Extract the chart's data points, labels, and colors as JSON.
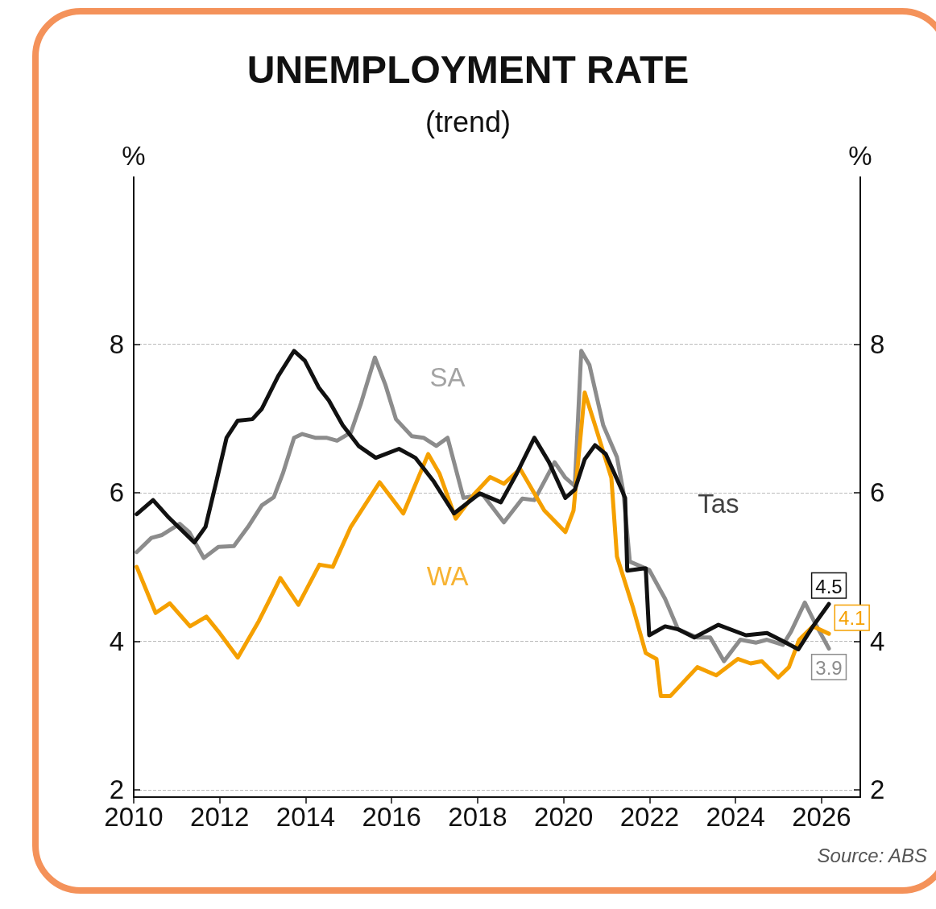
{
  "chart_data": {
    "type": "line",
    "title": "UNEMPLOYMENT RATE",
    "subtitle": "(trend)",
    "ylabel": "%",
    "y2label": "%",
    "xlim": [
      2010,
      2026.9
    ],
    "xticks": [
      2010,
      2012,
      2014,
      2016,
      2018,
      2020,
      2022,
      2024,
      2026
    ],
    "ylim": [
      1.9,
      10.25
    ],
    "yticks": [
      2,
      4,
      6,
      8
    ],
    "y2lim": [
      1.9,
      10.25
    ],
    "y2ticks": [
      2,
      4,
      6,
      8
    ],
    "grid": "y",
    "marker": "none",
    "line_style": "solid",
    "annotations": [
      "Source: ABS"
    ],
    "series": [
      {
        "name": "SA",
        "color": "#8c8c8c",
        "x": [
          2010.07,
          2010.41,
          2010.66,
          2011.07,
          2011.29,
          2011.63,
          2011.97,
          2012.33,
          2012.66,
          2012.98,
          2013.26,
          2013.47,
          2013.73,
          2013.92,
          2014.22,
          2014.48,
          2014.73,
          2015.05,
          2015.29,
          2015.61,
          2015.85,
          2016.1,
          2016.47,
          2016.74,
          2017.04,
          2017.3,
          2017.67,
          2018.11,
          2018.61,
          2019.04,
          2019.32,
          2019.79,
          2020.04,
          2020.26,
          2020.41,
          2020.6,
          2020.92,
          2021.24,
          2021.39,
          2021.54,
          2021.99,
          2022.36,
          2022.66,
          2023.11,
          2023.41,
          2023.73,
          2024.11,
          2024.48,
          2024.73,
          2025.1,
          2025.29,
          2025.61,
          2025.85,
          2026.17
        ],
        "values": [
          5.2,
          5.39,
          5.43,
          5.58,
          5.47,
          5.12,
          5.27,
          5.28,
          5.54,
          5.83,
          5.94,
          6.26,
          6.74,
          6.79,
          6.74,
          6.74,
          6.7,
          6.81,
          7.21,
          7.82,
          7.46,
          6.99,
          6.76,
          6.74,
          6.63,
          6.74,
          5.93,
          5.98,
          5.6,
          5.92,
          5.9,
          6.41,
          6.2,
          6.09,
          7.91,
          7.72,
          6.91,
          6.48,
          6.01,
          5.07,
          4.96,
          4.57,
          4.16,
          4.05,
          4.05,
          3.73,
          4.02,
          3.98,
          4.02,
          3.95,
          4.13,
          4.52,
          4.24,
          3.9
        ],
        "value_labels": [
          null,
          null,
          null,
          null,
          null,
          null,
          null,
          null,
          null,
          null,
          null,
          null,
          null,
          null,
          null,
          null,
          null,
          null,
          null,
          null,
          null,
          null,
          null,
          null,
          null,
          null,
          null,
          null,
          null,
          null,
          null,
          null,
          null,
          null,
          null,
          null,
          null,
          null,
          null,
          null,
          null,
          null,
          null,
          null,
          null,
          null,
          null,
          null,
          null,
          null,
          null,
          null,
          null,
          "3.9"
        ]
      },
      {
        "name": "WA",
        "color": "#f5a000",
        "x": [
          2010.07,
          2010.51,
          2010.84,
          2011.31,
          2011.69,
          2011.97,
          2012.42,
          2012.91,
          2013.17,
          2013.41,
          2013.83,
          2014.32,
          2014.63,
          2015.05,
          2015.72,
          2016.27,
          2016.85,
          2017.11,
          2017.49,
          2017.92,
          2018.29,
          2018.61,
          2018.99,
          2019.55,
          2020.04,
          2020.23,
          2020.49,
          2020.73,
          2021.11,
          2021.24,
          2021.61,
          2021.91,
          2022.16,
          2022.26,
          2022.48,
          2023.11,
          2023.55,
          2024.05,
          2024.35,
          2024.61,
          2024.99,
          2025.24,
          2025.48,
          2025.8,
          2026.17
        ],
        "values": [
          5.0,
          4.38,
          4.51,
          4.2,
          4.33,
          4.13,
          3.78,
          4.27,
          4.57,
          4.85,
          4.49,
          5.03,
          5.0,
          5.54,
          6.14,
          5.72,
          6.52,
          6.26,
          5.65,
          5.98,
          6.21,
          6.12,
          6.32,
          5.76,
          5.47,
          5.76,
          7.35,
          6.91,
          6.2,
          5.14,
          4.46,
          3.84,
          3.76,
          3.26,
          3.26,
          3.65,
          3.54,
          3.76,
          3.7,
          3.73,
          3.51,
          3.65,
          4.02,
          4.2,
          4.1
        ],
        "value_labels": [
          null,
          null,
          null,
          null,
          null,
          null,
          null,
          null,
          null,
          null,
          null,
          null,
          null,
          null,
          null,
          null,
          null,
          null,
          null,
          null,
          null,
          null,
          null,
          null,
          null,
          null,
          null,
          null,
          null,
          null,
          null,
          null,
          null,
          null,
          null,
          null,
          null,
          null,
          null,
          null,
          null,
          null,
          null,
          null,
          "4.1"
        ]
      },
      {
        "name": "Tas",
        "color": "#111111",
        "x": [
          2010.07,
          2010.45,
          2010.79,
          2011.41,
          2011.67,
          2011.91,
          2012.16,
          2012.42,
          2012.76,
          2012.98,
          2013.36,
          2013.73,
          2013.98,
          2014.3,
          2014.54,
          2014.86,
          2015.23,
          2015.63,
          2016.17,
          2016.55,
          2016.98,
          2017.45,
          2018.05,
          2018.54,
          2018.91,
          2019.32,
          2019.66,
          2020.04,
          2020.26,
          2020.49,
          2020.73,
          2020.98,
          2021.35,
          2021.43,
          2021.48,
          2021.86,
          2021.91,
          2021.99,
          2022.36,
          2022.66,
          2023.04,
          2023.6,
          2024.24,
          2024.73,
          2025.1,
          2025.46,
          2025.8,
          2026.17
        ],
        "values": [
          5.71,
          5.9,
          5.68,
          5.33,
          5.54,
          6.12,
          6.74,
          6.97,
          6.99,
          7.13,
          7.57,
          7.91,
          7.78,
          7.42,
          7.24,
          6.91,
          6.63,
          6.47,
          6.59,
          6.47,
          6.15,
          5.72,
          5.99,
          5.87,
          6.26,
          6.74,
          6.41,
          5.93,
          6.04,
          6.45,
          6.64,
          6.52,
          6.04,
          5.93,
          4.95,
          4.98,
          4.98,
          4.08,
          4.2,
          4.16,
          4.05,
          4.22,
          4.08,
          4.11,
          4.0,
          3.89,
          4.2,
          4.5
        ],
        "value_labels": [
          null,
          null,
          null,
          null,
          null,
          null,
          null,
          null,
          null,
          null,
          null,
          null,
          null,
          null,
          null,
          null,
          null,
          null,
          null,
          null,
          null,
          null,
          null,
          null,
          null,
          null,
          null,
          null,
          null,
          null,
          null,
          null,
          null,
          null,
          null,
          null,
          null,
          null,
          null,
          null,
          null,
          null,
          null,
          null,
          null,
          null,
          null,
          "4.5"
        ]
      }
    ]
  }
}
